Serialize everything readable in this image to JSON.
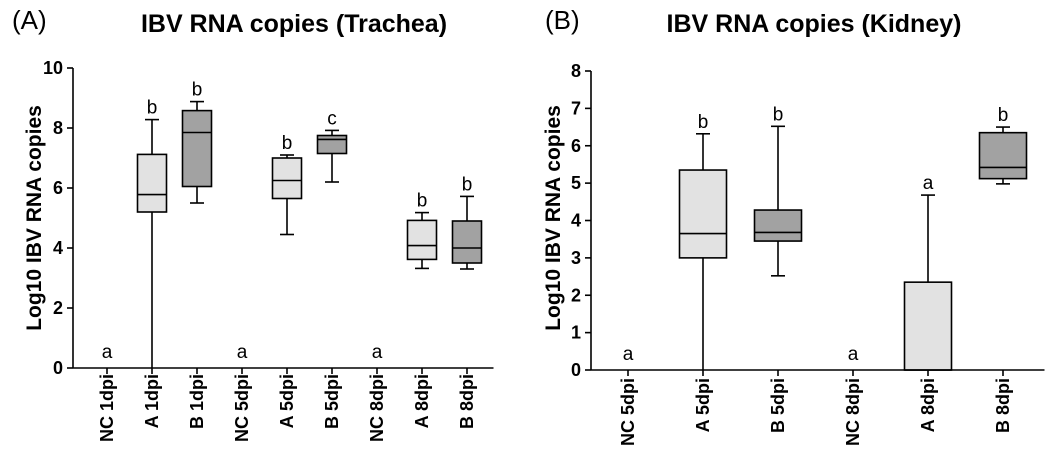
{
  "colors": {
    "light_box": "#e2e2e2",
    "dark_box": "#a2a2a2",
    "stroke": "#000000"
  },
  "chart_data": [
    {
      "type": "box",
      "panel_label": "(A)",
      "title": "IBV RNA copies (Trachea)",
      "ylabel": "Log10 IBV RNA copies",
      "ylim": [
        0,
        10
      ],
      "yticks": [
        0,
        2,
        4,
        6,
        8,
        10
      ],
      "categories": [
        "NC 1dpi",
        "A 1dpi",
        "B 1dpi",
        "NC 5dpi",
        "A 5dpi",
        "B 5dpi",
        "NC 8dpi",
        "A 8dpi",
        "B 8dpi"
      ],
      "boxes": [
        {
          "category": "NC 1dpi",
          "group": "NC",
          "letter": "a"
        },
        {
          "category": "A 1dpi",
          "group": "A",
          "letter": "b",
          "min": 0,
          "q1": 5.2,
          "median": 5.78,
          "q3": 7.12,
          "max": 8.28
        },
        {
          "category": "B 1dpi",
          "group": "B",
          "letter": "b",
          "min": 5.5,
          "q1": 6.05,
          "median": 7.85,
          "q3": 8.58,
          "max": 8.88
        },
        {
          "category": "NC 5dpi",
          "group": "NC",
          "letter": "a"
        },
        {
          "category": "A 5dpi",
          "group": "A",
          "letter": "b",
          "min": 4.45,
          "q1": 5.65,
          "median": 6.25,
          "q3": 7.0,
          "max": 7.1
        },
        {
          "category": "B 5dpi",
          "group": "B",
          "letter": "c",
          "min": 6.2,
          "q1": 7.15,
          "median": 7.62,
          "q3": 7.75,
          "max": 7.92
        },
        {
          "category": "NC 8dpi",
          "group": "NC",
          "letter": "a"
        },
        {
          "category": "A 8dpi",
          "group": "A",
          "letter": "b",
          "min": 3.32,
          "q1": 3.62,
          "median": 4.08,
          "q3": 4.92,
          "max": 5.18
        },
        {
          "category": "B 8dpi",
          "group": "B",
          "letter": "b",
          "min": 3.3,
          "q1": 3.5,
          "median": 4.0,
          "q3": 4.9,
          "max": 5.72
        }
      ]
    },
    {
      "type": "box",
      "panel_label": "(B)",
      "title": "IBV RNA copies (Kidney)",
      "ylabel": "Log10 IBV RNA copies",
      "ylim": [
        0,
        8
      ],
      "yticks": [
        0,
        1,
        2,
        3,
        4,
        5,
        6,
        7,
        8
      ],
      "categories": [
        "NC 5dpi",
        "A 5dpi",
        "B 5dpi",
        "NC 8dpi",
        "A 8dpi",
        "B 8dpi"
      ],
      "boxes": [
        {
          "category": "NC 5dpi",
          "group": "NC",
          "letter": "a"
        },
        {
          "category": "A 5dpi",
          "group": "A",
          "letter": "b",
          "min": 0,
          "q1": 3.0,
          "median": 3.65,
          "q3": 5.35,
          "max": 6.32
        },
        {
          "category": "B 5dpi",
          "group": "B",
          "letter": "b",
          "min": 2.52,
          "q1": 3.45,
          "median": 3.68,
          "q3": 4.28,
          "max": 6.52
        },
        {
          "category": "NC 8dpi",
          "group": "NC",
          "letter": "a"
        },
        {
          "category": "A 8dpi",
          "group": "A",
          "letter": "a",
          "min": 0,
          "q1": 0,
          "median": 0,
          "q3": 2.35,
          "max": 4.68
        },
        {
          "category": "B 8dpi",
          "group": "B",
          "letter": "b",
          "min": 4.98,
          "q1": 5.12,
          "median": 5.42,
          "q3": 6.35,
          "max": 6.5
        }
      ]
    }
  ]
}
